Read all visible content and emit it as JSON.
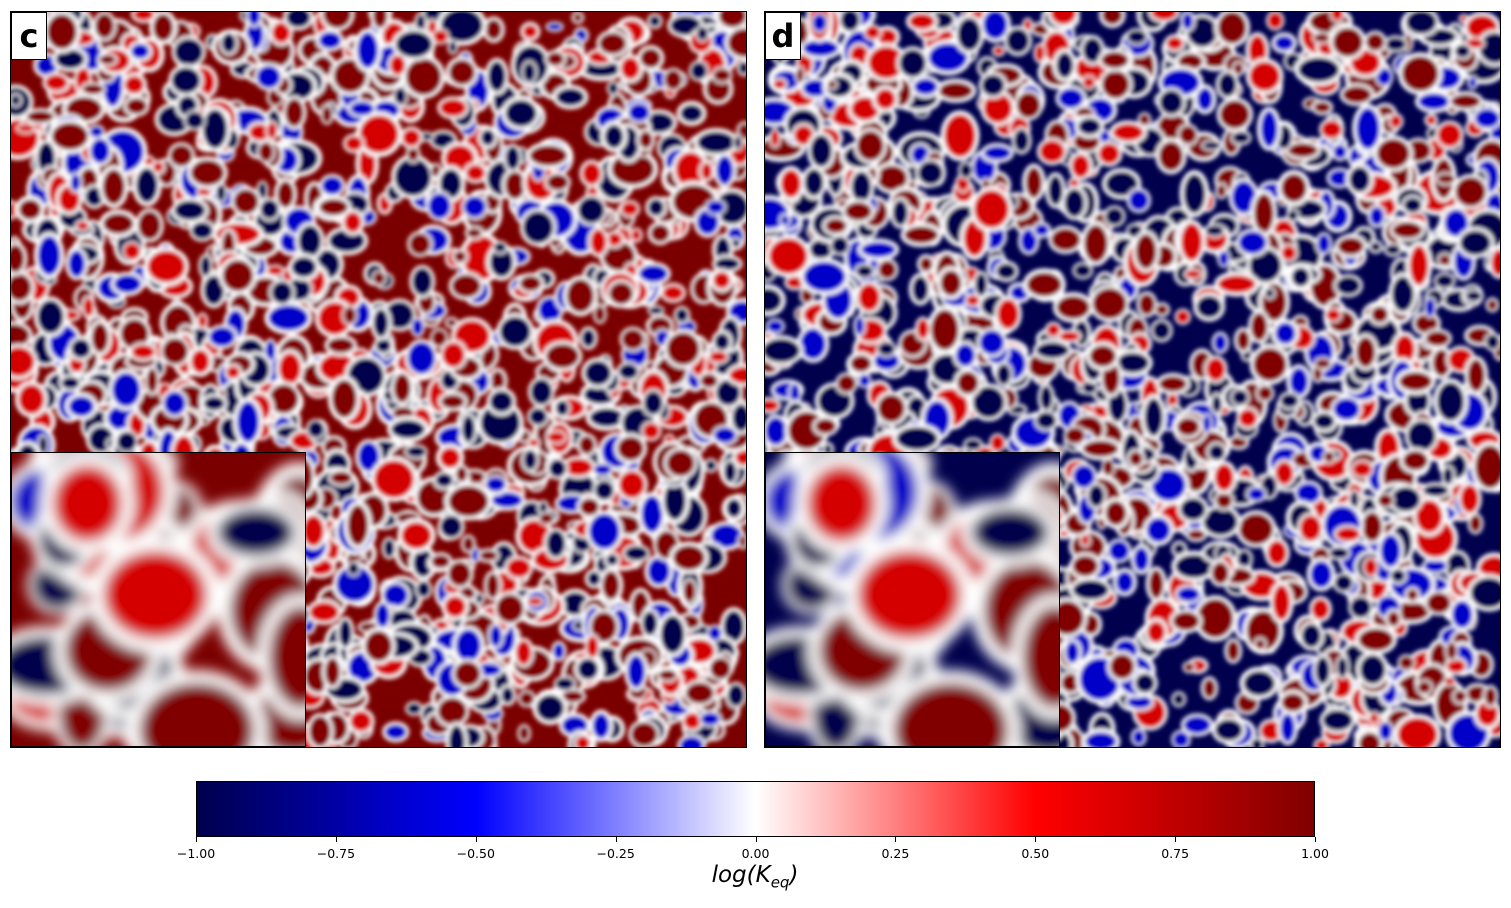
{
  "chart_data": [
    {
      "type": "heatmap",
      "panel_label": "c",
      "description_colors": {
        "min": "#00004c",
        "mid": "#ffffff",
        "max": "#800000"
      },
      "dominant": "mixed",
      "inset": true
    },
    {
      "type": "heatmap",
      "panel_label": "d",
      "description_colors": {
        "min": "#00004c",
        "mid": "#ffffff",
        "max": "#800000"
      },
      "dominant": "mixed",
      "inset": true
    }
  ],
  "colorbar": {
    "colormap": "seismic",
    "stops": [
      "#00004c",
      "#0000ff",
      "#ffffff",
      "#ff0000",
      "#800000"
    ],
    "vmin": -1.0,
    "vmax": 1.0,
    "ticks": [
      "-1.00",
      "-0.75",
      "-0.50",
      "-0.25",
      "0.00",
      "0.25",
      "0.50",
      "0.75",
      "1.00"
    ],
    "label_main": "log(K",
    "label_sub": "eq",
    "label_close": ")"
  },
  "panels": {
    "c": {
      "label": "c"
    },
    "d": {
      "label": "d"
    }
  }
}
